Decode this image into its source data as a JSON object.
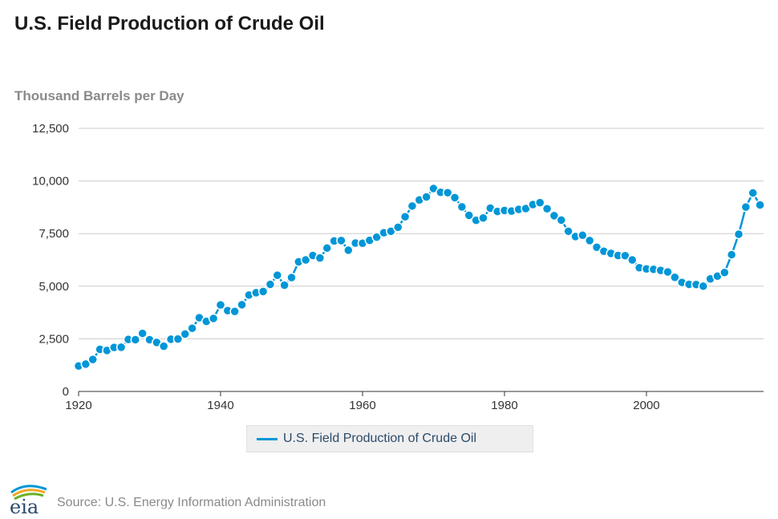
{
  "header": {
    "title": "U.S. Field Production of Crude Oil",
    "units": "Thousand Barrels per Day"
  },
  "legend": {
    "label": "U.S. Field Production of Crude Oil"
  },
  "footer": {
    "logo_text": "eia",
    "source": "Source: U.S. Energy Information Administration"
  },
  "colors": {
    "series": "#0096d7",
    "grid": "#cccccc",
    "axis": "#333333"
  },
  "chart_data": {
    "type": "line",
    "title": "U.S. Field Production of Crude Oil",
    "ylabel": "Thousand Barrels per Day",
    "xlabel": "",
    "xlim": [
      1920,
      2016.5
    ],
    "ylim": [
      0,
      12500
    ],
    "x_ticks": [
      1920,
      1940,
      1960,
      1980,
      2000
    ],
    "y_ticks": [
      0,
      2500,
      5000,
      7500,
      10000,
      12500
    ],
    "y_tick_labels": [
      "0",
      "2,500",
      "5,000",
      "7,500",
      "10,000",
      "12,500"
    ],
    "grid": true,
    "markers": true,
    "legend_position": "bottom",
    "series": [
      {
        "name": "U.S. Field Production of Crude Oil",
        "x": [
          1920,
          1921,
          1922,
          1923,
          1924,
          1925,
          1926,
          1927,
          1928,
          1929,
          1930,
          1931,
          1932,
          1933,
          1934,
          1935,
          1936,
          1937,
          1938,
          1939,
          1940,
          1941,
          1942,
          1943,
          1944,
          1945,
          1946,
          1947,
          1948,
          1949,
          1950,
          1951,
          1952,
          1953,
          1954,
          1955,
          1956,
          1957,
          1958,
          1959,
          1960,
          1961,
          1962,
          1963,
          1964,
          1965,
          1966,
          1967,
          1968,
          1969,
          1970,
          1971,
          1972,
          1973,
          1974,
          1975,
          1976,
          1977,
          1978,
          1979,
          1980,
          1981,
          1982,
          1983,
          1984,
          1985,
          1986,
          1987,
          1988,
          1989,
          1990,
          1991,
          1992,
          1993,
          1994,
          1995,
          1996,
          1997,
          1998,
          1999,
          2000,
          2001,
          2002,
          2003,
          2004,
          2005,
          2006,
          2007,
          2008,
          2009,
          2010,
          2011,
          2012,
          2013,
          2014,
          2015,
          2016
        ],
        "values": [
          1210,
          1300,
          1520,
          2000,
          1950,
          2090,
          2100,
          2470,
          2460,
          2760,
          2460,
          2330,
          2150,
          2480,
          2490,
          2730,
          3000,
          3500,
          3330,
          3470,
          4110,
          3840,
          3800,
          4120,
          4580,
          4690,
          4750,
          5090,
          5520,
          5050,
          5410,
          6160,
          6250,
          6460,
          6340,
          6810,
          7150,
          7170,
          6710,
          7050,
          7040,
          7180,
          7330,
          7540,
          7610,
          7800,
          8300,
          8810,
          9100,
          9240,
          9640,
          9460,
          9440,
          9210,
          8770,
          8370,
          8130,
          8240,
          8710,
          8550,
          8600,
          8570,
          8650,
          8690,
          8880,
          8970,
          8680,
          8350,
          8140,
          7610,
          7360,
          7420,
          7170,
          6850,
          6660,
          6560,
          6460,
          6450,
          6250,
          5880,
          5820,
          5800,
          5750,
          5680,
          5420,
          5180,
          5090,
          5080,
          5000,
          5350,
          5480,
          5650,
          6500,
          7470,
          8760,
          9430,
          8860
        ]
      }
    ]
  }
}
